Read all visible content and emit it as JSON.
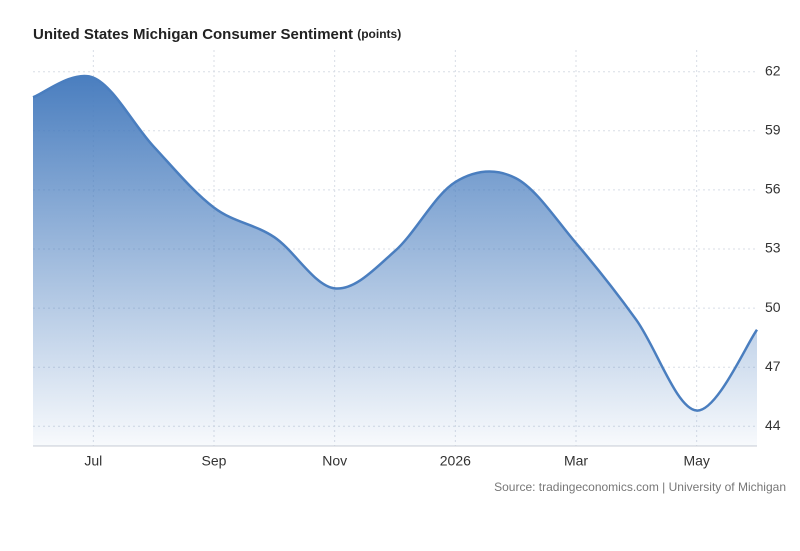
{
  "chart_data": {
    "type": "area",
    "title": "United States Michigan Consumer Sentiment",
    "unit": "(points)",
    "source": "Source: tradingeconomics.com | University of Michigan",
    "categories": [
      null,
      "Jul",
      null,
      "Sep",
      null,
      "Nov",
      null,
      "2026",
      null,
      "Mar",
      null,
      "May",
      null
    ],
    "values": [
      60.7,
      61.7,
      58.2,
      55.1,
      53.6,
      51.0,
      52.9,
      56.4,
      56.6,
      53.3,
      49.4,
      44.8,
      48.9
    ],
    "color": "#4a7ebf",
    "ylim": [
      43,
      63
    ],
    "yticks": [
      44,
      47,
      50,
      53,
      56,
      59,
      62
    ],
    "grid": true,
    "y_axis_side": "right"
  }
}
